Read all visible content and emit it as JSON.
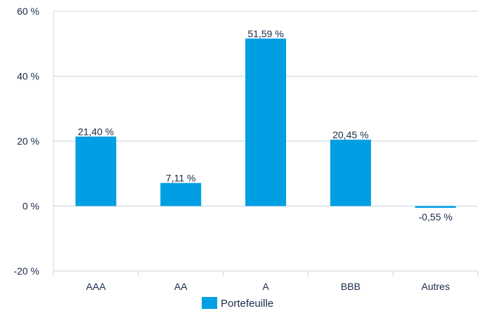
{
  "chart_data": {
    "type": "bar",
    "categories": [
      "AAA",
      "AA",
      "A",
      "BBB",
      "Autres"
    ],
    "series": [
      {
        "name": "Portefeuille",
        "values": [
          21.4,
          7.11,
          51.59,
          20.45,
          -0.55
        ],
        "labels": [
          "21,40 %",
          "7,11 %",
          "51,59 %",
          "20,45 %",
          "-0,55 %"
        ],
        "color": "#009fe3"
      }
    ],
    "title": "",
    "xlabel": "",
    "ylabel": "",
    "ylim": [
      -20,
      60
    ],
    "yticks": [
      60,
      40,
      20,
      0,
      -20
    ],
    "ytick_labels": [
      "60 %",
      "40 %",
      "20 %",
      "0 %",
      "-20 %"
    ],
    "grid": true,
    "grid_color": "#c8d6e2",
    "legend_position": "bottom-center"
  }
}
